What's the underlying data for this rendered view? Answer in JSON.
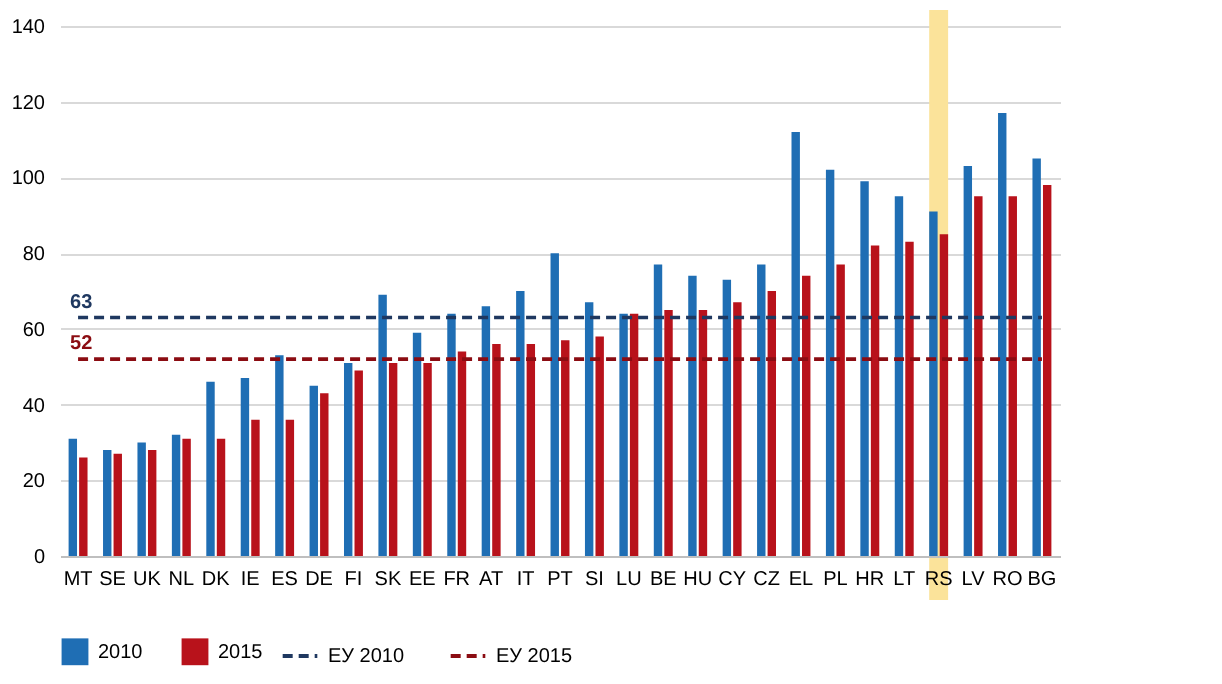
{
  "chart_data": {
    "type": "bar",
    "categories": [
      "MT",
      "SE",
      "UK",
      "NL",
      "DK",
      "IE",
      "ES",
      "DE",
      "FI",
      "SK",
      "EE",
      "FR",
      "AT",
      "IT",
      "PT",
      "SI",
      "LU",
      "BE",
      "HU",
      "CY",
      "CZ",
      "EL",
      "PL",
      "HR",
      "LT",
      "RS",
      "LV",
      "RO",
      "BG"
    ],
    "series": [
      {
        "name": "2010",
        "color": "#1f6eb4",
        "values": [
          31,
          28,
          30,
          32,
          46,
          47,
          53,
          45,
          51,
          69,
          59,
          64,
          66,
          70,
          80,
          67,
          64,
          77,
          74,
          73,
          77,
          112,
          102,
          99,
          95,
          91,
          103,
          117,
          105
        ]
      },
      {
        "name": "2015",
        "color": "#b8121b",
        "values": [
          26,
          27,
          28,
          31,
          31,
          36,
          36,
          43,
          49,
          51,
          51,
          54,
          56,
          56,
          57,
          58,
          64,
          65,
          65,
          67,
          70,
          74,
          77,
          82,
          83,
          85,
          95,
          95,
          98
        ]
      },
      {
        "name": "ЕУ 2010",
        "type": "line",
        "line_style": "dashed",
        "color": "#1f3860",
        "values": [
          63,
          63,
          63,
          63,
          63,
          63,
          63,
          63,
          63,
          63,
          63,
          63,
          63,
          63,
          63,
          63,
          63,
          63,
          63,
          63,
          63,
          63,
          63,
          63,
          63,
          63,
          63,
          63,
          63
        ]
      },
      {
        "name": "ЕУ 2015",
        "type": "line",
        "line_style": "dashed",
        "color": "#8b0c12",
        "values": [
          52,
          52,
          52,
          52,
          52,
          52,
          52,
          52,
          52,
          52,
          52,
          52,
          52,
          52,
          52,
          52,
          52,
          52,
          52,
          52,
          52,
          52,
          52,
          52,
          52,
          52,
          52,
          52,
          52
        ]
      }
    ],
    "annotations": [
      {
        "text": "63",
        "x": "MT",
        "y": 63
      },
      {
        "text": "52",
        "x": "MT",
        "y": 52
      }
    ],
    "bands": [
      {
        "axis": "x",
        "from": "RS",
        "to": "RS",
        "color": "#fbe39a"
      }
    ],
    "ylim": [
      0,
      140
    ],
    "yticks": [
      0,
      20,
      40,
      60,
      80,
      100,
      120,
      140
    ],
    "grid": "y",
    "legend": "bottom"
  }
}
